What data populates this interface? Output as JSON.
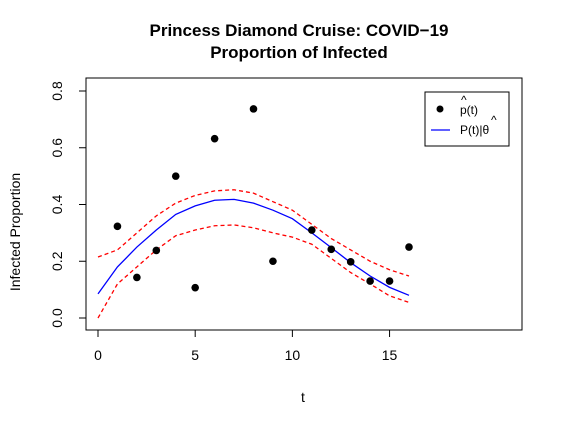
{
  "chart_data": {
    "type": "scatter",
    "title": "Princess Diamond Cruise: COVID−19",
    "subtitle": "Proportion of Infected",
    "xlabel": "t",
    "ylabel": "Infected Proportion",
    "xlim": [
      0,
      16
    ],
    "ylim": [
      0,
      0.8
    ],
    "x_ticks": [
      "0",
      "5",
      "10",
      "15"
    ],
    "x_tick_values": [
      0,
      5,
      10,
      15
    ],
    "y_ticks": [
      "0.0",
      "0.2",
      "0.4",
      "0.6",
      "0.8"
    ],
    "y_tick_values": [
      0,
      0.2,
      0.4,
      0.6,
      0.8
    ],
    "grid": false,
    "legend_position": "top-right",
    "legend": [
      {
        "label_main": "p(t)",
        "label_accent": "^",
        "symbol": "point",
        "color": "#000000"
      },
      {
        "label_main": "P(t)|θ",
        "label_accent": "^",
        "symbol": "line",
        "color": "#0000ff"
      }
    ],
    "series": [
      {
        "name": "p(t)",
        "kind": "points",
        "color": "#000000",
        "x": [
          1,
          2,
          3,
          4,
          5,
          6,
          8,
          9,
          11,
          12,
          13,
          14,
          15,
          16
        ],
        "y": [
          0.323,
          0.143,
          0.238,
          0.5,
          0.107,
          0.632,
          0.737,
          0.2,
          0.31,
          0.242,
          0.198,
          0.13,
          0.13,
          0.25
        ]
      },
      {
        "name": "P(t)|θ",
        "kind": "line",
        "color": "#0000ff",
        "x": [
          0,
          1,
          2,
          3,
          4,
          5,
          6,
          7,
          8,
          9,
          10,
          11,
          12,
          13,
          14,
          15,
          16
        ],
        "y": [
          0.085,
          0.18,
          0.25,
          0.31,
          0.365,
          0.395,
          0.415,
          0.418,
          0.405,
          0.38,
          0.35,
          0.3,
          0.248,
          0.195,
          0.148,
          0.108,
          0.08
        ]
      },
      {
        "kind": "dashed",
        "color": "#ff0000",
        "x": [
          0,
          1,
          2,
          3,
          4,
          5,
          6,
          7,
          8,
          9,
          10,
          11,
          12,
          13,
          14,
          15,
          16
        ],
        "y": [
          0.215,
          0.24,
          0.3,
          0.36,
          0.405,
          0.432,
          0.448,
          0.452,
          0.44,
          0.41,
          0.38,
          0.33,
          0.28,
          0.24,
          0.2,
          0.17,
          0.148
        ]
      },
      {
        "kind": "dashed",
        "color": "#ff0000",
        "x": [
          0,
          1,
          2,
          3,
          4,
          5,
          6,
          7,
          8,
          9,
          10,
          11,
          12,
          13,
          14,
          15,
          16
        ],
        "y": [
          0.0,
          0.12,
          0.18,
          0.24,
          0.29,
          0.31,
          0.325,
          0.328,
          0.318,
          0.3,
          0.285,
          0.26,
          0.21,
          0.16,
          0.12,
          0.078,
          0.055
        ]
      }
    ]
  }
}
